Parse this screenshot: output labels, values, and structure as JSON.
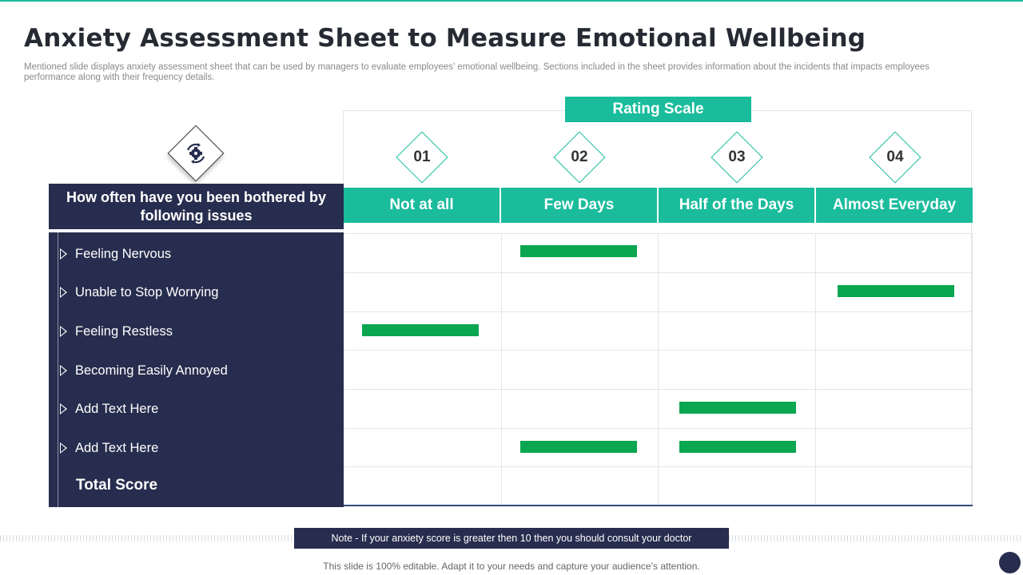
{
  "title": "Anxiety Assessment Sheet to Measure Emotional Wellbeing",
  "subtitle": "Mentioned slide displays anxiety assessment sheet that can be used by managers to evaluate employees’ emotional wellbeing. Sections included in the sheet provides information about the incidents that impacts employees performance along with their frequency details.",
  "rating_scale_label": "Rating Scale",
  "scale_numbers": [
    "01",
    "02",
    "03",
    "04"
  ],
  "columns": [
    "Not at all",
    "Few Days",
    "Half of the Days",
    "Almost Everyday"
  ],
  "question": "How often have you been bothered by following issues",
  "issues": [
    "Feeling Nervous",
    "Unable to Stop Worrying",
    "Feeling Restless",
    "Becoming Easily Annoyed",
    "Add Text Here",
    "Add Text Here"
  ],
  "total_label": "Total Score",
  "responses": [
    {
      "row": 0,
      "col": 1
    },
    {
      "row": 1,
      "col": 3
    },
    {
      "row": 2,
      "col": 0
    },
    {
      "row": 4,
      "col": 2
    },
    {
      "row": 5,
      "col": 1
    },
    {
      "row": 5,
      "col": 2
    }
  ],
  "note": "Note - If your anxiety score is greater then 10 then you should consult your doctor",
  "footer": "This slide is 100% editable. Adapt it to your needs and capture your audience’s attention.",
  "icon": "gear-refresh-icon",
  "colors": {
    "accent": "#1abc9c",
    "navy": "#272d4e",
    "bar": "#0aa650"
  }
}
